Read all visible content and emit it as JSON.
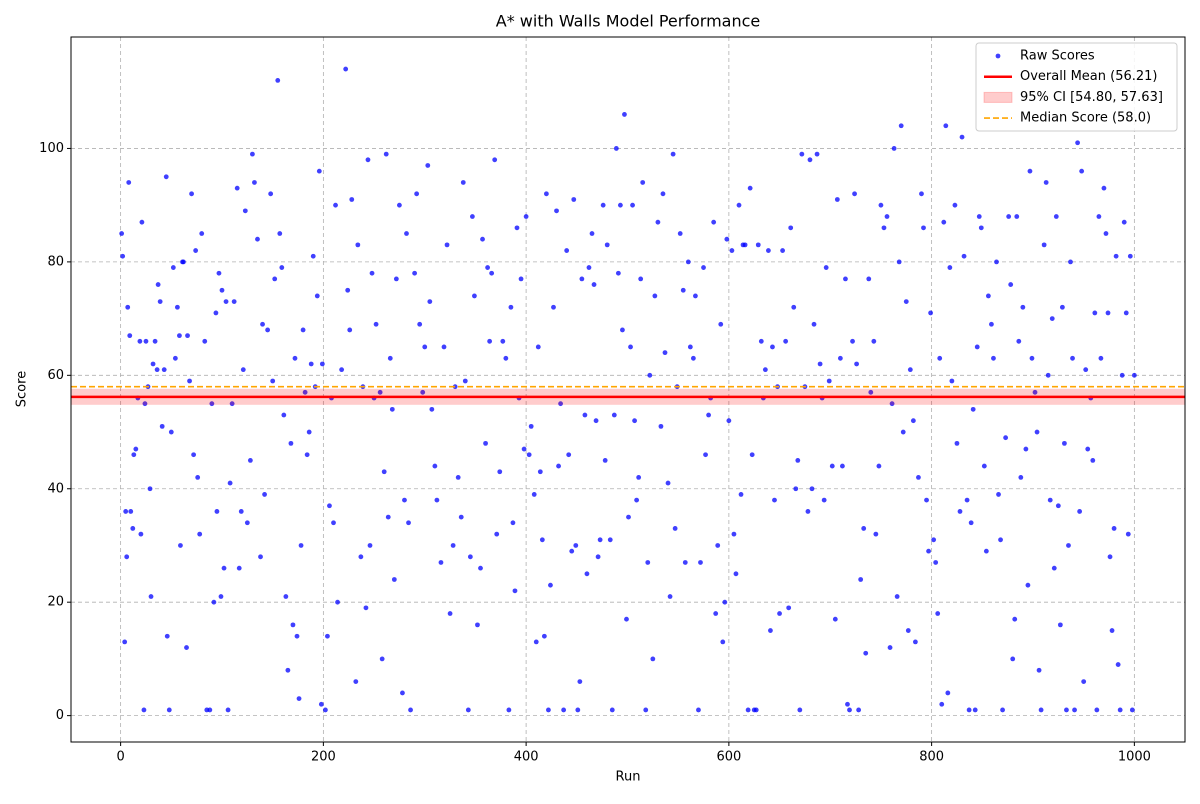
{
  "chart_data": {
    "type": "scatter",
    "title": "A* with Walls Model Performance",
    "x_label": "Run",
    "y_label": "Score",
    "xlim": [
      -48.95,
      1049.95
    ],
    "ylim": [
      -4.65,
      119.65
    ],
    "xticks": [
      0,
      200,
      400,
      600,
      800,
      1000
    ],
    "yticks": [
      0,
      20,
      40,
      60,
      80,
      100
    ],
    "grid": true,
    "legend": "upper right",
    "series": [
      {
        "name": "Raw Scores",
        "color": "#0000ff",
        "x": [
          1,
          2,
          4,
          5,
          6,
          7,
          8,
          9,
          10,
          12,
          13,
          15,
          17,
          19,
          20,
          21,
          23,
          24,
          25,
          27,
          29,
          30,
          32,
          34,
          36,
          37,
          39,
          41,
          43,
          45,
          46,
          48,
          50,
          52,
          54,
          56,
          58,
          59,
          61,
          62,
          65,
          66,
          68,
          70,
          72,
          74,
          76,
          78,
          80,
          83,
          85,
          88,
          90,
          92,
          94,
          95,
          97,
          99,
          100,
          102,
          104,
          106,
          108,
          110,
          112,
          115,
          117,
          119,
          121,
          123,
          125,
          128,
          130,
          132,
          135,
          138,
          140,
          142,
          145,
          148,
          150,
          152,
          155,
          157,
          159,
          161,
          163,
          165,
          168,
          170,
          172,
          174,
          176,
          178,
          180,
          182,
          184,
          186,
          188,
          190,
          192,
          194,
          196,
          198,
          199,
          202,
          204,
          206,
          208,
          210,
          212,
          214,
          218,
          222,
          224,
          226,
          228,
          232,
          234,
          237,
          239,
          242,
          244,
          246,
          248,
          250,
          252,
          256,
          258,
          260,
          262,
          264,
          266,
          268,
          270,
          272,
          275,
          278,
          280,
          282,
          284,
          286,
          290,
          292,
          295,
          298,
          300,
          303,
          305,
          307,
          310,
          312,
          316,
          319,
          322,
          325,
          328,
          330,
          333,
          336,
          338,
          340,
          343,
          345,
          347,
          349,
          352,
          355,
          357,
          360,
          362,
          364,
          366,
          369,
          371,
          374,
          377,
          380,
          383,
          385,
          387,
          389,
          391,
          393,
          395,
          398,
          400,
          403,
          405,
          408,
          410,
          412,
          414,
          416,
          418,
          420,
          422,
          424,
          427,
          430,
          432,
          434,
          437,
          440,
          442,
          445,
          447,
          449,
          451,
          453,
          455,
          458,
          460,
          462,
          465,
          467,
          469,
          471,
          473,
          476,
          478,
          480,
          483,
          485,
          487,
          489,
          491,
          493,
          495,
          497,
          499,
          501,
          503,
          505,
          507,
          509,
          511,
          513,
          515,
          518,
          520,
          522,
          525,
          527,
          530,
          533,
          535,
          537,
          540,
          542,
          545,
          547,
          549,
          552,
          555,
          557,
          560,
          562,
          565,
          567,
          570,
          572,
          575,
          577,
          580,
          582,
          585,
          587,
          589,
          592,
          594,
          596,
          598,
          600,
          603,
          605,
          607,
          610,
          612,
          614,
          616,
          619,
          621,
          623,
          625,
          627,
          629,
          632,
          634,
          636,
          639,
          641,
          643,
          645,
          648,
          650,
          653,
          656,
          659,
          661,
          664,
          666,
          668,
          670,
          672,
          675,
          678,
          680,
          682,
          684,
          687,
          690,
          692,
          694,
          696,
          699,
          702,
          705,
          707,
          710,
          712,
          715,
          717,
          719,
          722,
          724,
          726,
          728,
          730,
          733,
          735,
          738,
          740,
          743,
          745,
          748,
          750,
          753,
          756,
          759,
          761,
          763,
          766,
          768,
          770,
          772,
          775,
          777,
          779,
          782,
          784,
          787,
          790,
          792,
          795,
          797,
          799,
          802,
          804,
          806,
          808,
          810,
          812,
          814,
          816,
          818,
          820,
          823,
          825,
          828,
          830,
          832,
          835,
          837,
          839,
          841,
          843,
          845,
          847,
          849,
          852,
          854,
          856,
          859,
          861,
          864,
          866,
          868,
          870,
          873,
          876,
          878,
          880,
          882,
          884,
          886,
          888,
          890,
          893,
          895,
          897,
          899,
          902,
          904,
          906,
          908,
          911,
          913,
          915,
          917,
          919,
          921,
          923,
          925,
          927,
          929,
          931,
          933,
          935,
          937,
          939,
          941,
          944,
          946,
          948,
          950,
          952,
          954,
          957,
          959,
          961,
          963,
          965,
          967,
          970,
          972,
          974,
          976,
          978,
          980,
          982,
          984,
          986,
          988,
          990,
          992,
          994,
          996,
          998,
          1000
        ],
        "values": [
          85,
          81,
          13,
          36,
          28,
          72,
          94,
          67,
          36,
          33,
          46,
          47,
          56,
          66,
          32,
          87,
          1,
          55,
          66,
          58,
          40,
          21,
          62,
          66,
          61,
          76,
          73,
          51,
          61,
          95,
          14,
          1,
          50,
          79,
          63,
          72,
          67,
          30,
          80,
          80,
          12,
          67,
          59,
          92,
          46,
          82,
          42,
          32,
          85,
          66,
          1,
          1,
          55,
          20,
          71,
          36,
          78,
          21,
          75,
          26,
          73,
          1,
          41,
          55,
          73,
          93,
          26,
          36,
          61,
          89,
          34,
          45,
          99,
          94,
          84,
          28,
          69,
          39,
          68,
          92,
          59,
          77,
          112,
          85,
          79,
          53,
          21,
          8,
          48,
          16,
          63,
          14,
          3,
          30,
          68,
          57,
          46,
          50,
          62,
          81,
          58,
          74,
          96,
          2,
          62,
          1,
          14,
          37,
          56,
          34,
          90,
          20,
          61,
          114,
          75,
          68,
          91,
          6,
          83,
          28,
          58,
          19,
          98,
          30,
          78,
          56,
          69,
          57,
          10,
          43,
          99,
          35,
          63,
          54,
          24,
          77,
          90,
          4,
          38,
          85,
          34,
          1,
          78,
          92,
          69,
          57,
          65,
          97,
          73,
          54,
          44,
          38,
          27,
          65,
          83,
          18,
          30,
          58,
          42,
          35,
          94,
          59,
          1,
          28,
          88,
          74,
          16,
          26,
          84,
          48,
          79,
          66,
          78,
          98,
          32,
          43,
          66,
          63,
          1,
          72,
          34,
          22,
          86,
          56,
          77,
          47,
          88,
          46,
          51,
          39,
          13,
          65,
          43,
          31,
          14,
          92,
          1,
          23,
          72,
          89,
          44,
          55,
          1,
          82,
          46,
          29,
          91,
          30,
          1,
          6,
          77,
          53,
          25,
          79,
          85,
          76,
          52,
          28,
          31,
          90,
          45,
          83,
          31,
          1,
          53,
          100,
          78,
          90,
          68,
          106,
          17,
          35,
          65,
          90,
          52,
          38,
          42,
          77,
          94,
          1,
          27,
          60,
          10,
          74,
          87,
          51,
          92,
          64,
          41,
          21,
          99,
          33,
          58,
          85,
          75,
          27,
          80,
          65,
          63,
          74,
          1,
          27,
          79,
          46,
          53,
          56,
          87,
          18,
          30,
          69,
          13,
          20,
          84,
          52,
          82,
          32,
          25,
          90,
          39,
          83,
          83,
          1,
          93,
          46,
          1,
          1,
          83,
          66,
          56,
          61,
          82,
          15,
          65,
          38,
          58,
          18,
          82,
          66,
          19,
          86,
          72,
          40,
          45,
          1,
          99,
          58,
          36,
          98,
          40,
          69,
          99,
          62,
          56,
          38,
          79,
          59,
          44,
          17,
          91,
          63,
          44,
          77,
          2,
          1,
          66,
          92,
          62,
          1,
          24,
          33,
          11,
          77,
          57,
          66,
          32,
          44,
          90,
          86,
          88,
          12,
          55,
          100,
          21,
          80,
          104,
          50,
          73,
          15,
          61,
          52,
          13,
          42,
          92,
          86,
          38,
          29,
          71,
          31,
          27,
          18,
          63,
          2,
          87,
          104,
          4,
          79,
          59,
          90,
          48,
          36,
          102,
          81,
          38,
          1,
          34,
          54,
          1,
          65,
          88,
          86,
          44,
          29,
          74,
          69,
          63,
          80,
          39,
          31,
          1,
          49,
          88,
          76,
          10,
          17,
          88,
          66,
          42,
          72,
          47,
          23,
          96,
          63,
          57,
          50,
          8,
          1,
          83,
          94,
          60,
          38,
          70,
          26,
          88,
          37,
          16,
          72,
          48,
          1,
          30,
          80,
          63,
          1,
          101,
          36,
          96,
          6,
          61,
          47,
          56,
          45,
          71,
          1,
          88,
          63,
          93,
          85,
          71,
          28,
          15,
          33,
          81,
          9,
          1,
          60,
          87,
          71,
          32,
          81,
          1,
          60
        ]
      }
    ],
    "mean": {
      "name": "Overall Mean (56.21)",
      "value": 56.21,
      "color": "#ff0000"
    },
    "ci": {
      "name": "95% CI [54.80, 57.63]",
      "low": 54.8,
      "high": 57.63,
      "color": "#ff0000"
    },
    "median": {
      "name": "Median Score (58.0)",
      "value": 58,
      "color": "#ffa500"
    }
  }
}
